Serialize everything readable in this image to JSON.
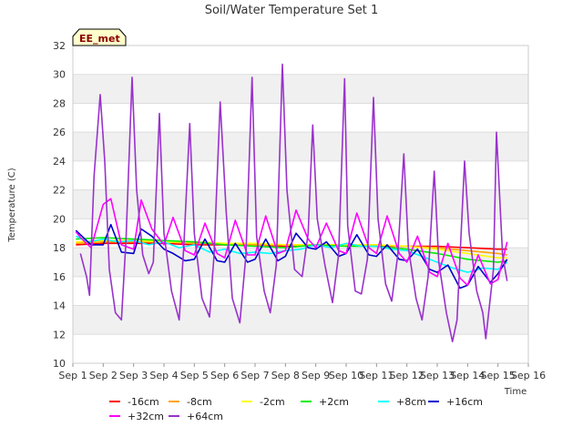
{
  "chart_data": {
    "type": "line",
    "title": "Soil/Water Temperature Set 1",
    "xlabel": "Time",
    "ylabel": "Temperature (C)",
    "badge": "EE_met",
    "xlim": [
      1,
      16
    ],
    "ylim": [
      10,
      32
    ],
    "x_ticks": [
      1,
      2,
      3,
      4,
      5,
      6,
      7,
      8,
      9,
      10,
      11,
      12,
      13,
      14,
      15,
      16
    ],
    "x_tick_labels": [
      "Sep 1",
      "Sep 2",
      "Sep 3",
      "Sep 4",
      "Sep 5",
      "Sep 6",
      "Sep 7",
      "Sep 8",
      "Sep 9",
      "Sep 10",
      "Sep 11",
      "Sep 12",
      "Sep 13",
      "Sep 14",
      "Sep 15",
      "Sep 16"
    ],
    "y_ticks": [
      10,
      12,
      14,
      16,
      18,
      20,
      22,
      24,
      26,
      28,
      30,
      32
    ],
    "grid": "alternating horizontal bands",
    "legend_position": "bottom",
    "series": [
      {
        "name": "-16cm",
        "color": "#ff0000",
        "x": [
          1.1,
          2,
          3,
          4,
          5,
          6,
          7,
          8,
          9,
          10,
          11,
          12,
          13,
          14,
          15,
          15.3
        ],
        "y": [
          18.2,
          18.3,
          18.3,
          18.3,
          18.2,
          18.2,
          18.2,
          18.1,
          18.2,
          18.2,
          18.1,
          18.1,
          18.1,
          18.0,
          17.9,
          17.9
        ]
      },
      {
        "name": "-8cm",
        "color": "#ffa500",
        "x": [
          1.1,
          2,
          3,
          4,
          5,
          6,
          7,
          8,
          9,
          10,
          11,
          12,
          13,
          14,
          15,
          15.3
        ],
        "y": [
          18.3,
          18.4,
          18.4,
          18.4,
          18.3,
          18.3,
          18.2,
          18.2,
          18.2,
          18.2,
          18.2,
          18.1,
          18.0,
          17.8,
          17.6,
          17.5
        ]
      },
      {
        "name": "-2cm",
        "color": "#ffff00",
        "x": [
          1.1,
          2,
          3,
          4,
          5,
          6,
          7,
          8,
          9,
          10,
          11,
          12,
          13,
          14,
          15,
          15.3
        ],
        "y": [
          18.4,
          18.5,
          18.5,
          18.4,
          18.4,
          18.3,
          18.3,
          18.2,
          18.2,
          18.2,
          18.2,
          18.1,
          17.9,
          17.6,
          17.3,
          17.3
        ]
      },
      {
        "name": "+2cm",
        "color": "#00ee00",
        "x": [
          1.1,
          2,
          3,
          4,
          5,
          6,
          7,
          8,
          9,
          10,
          11,
          12,
          13,
          14,
          15,
          15.3
        ],
        "y": [
          18.6,
          18.7,
          18.6,
          18.5,
          18.4,
          18.2,
          18.1,
          18.0,
          18.2,
          18.1,
          18.1,
          17.9,
          17.6,
          17.2,
          17.0,
          17.1
        ]
      },
      {
        "name": "+8cm",
        "color": "#00ffff",
        "x": [
          1.1,
          1.5,
          2,
          2.5,
          3,
          3.5,
          4,
          4.5,
          5,
          5.5,
          6,
          6.5,
          7,
          7.5,
          8,
          8.5,
          9,
          9.5,
          10,
          10.5,
          11,
          11.5,
          12,
          12.5,
          13,
          13.5,
          14,
          14.5,
          15,
          15.3
        ],
        "y": [
          18.8,
          18.4,
          18.6,
          18.4,
          18.5,
          18.2,
          18.4,
          18.0,
          18.2,
          17.7,
          17.9,
          17.6,
          17.7,
          17.6,
          17.8,
          17.9,
          18.2,
          18.0,
          18.3,
          18.1,
          18.1,
          17.9,
          17.8,
          17.4,
          17.0,
          16.6,
          16.3,
          16.6,
          16.5,
          17.0
        ]
      },
      {
        "name": "+16cm",
        "color": "#0000cd",
        "x": [
          1.1,
          1.3,
          1.6,
          2.0,
          2.25,
          2.6,
          3.0,
          3.25,
          3.6,
          4.0,
          4.3,
          4.7,
          5.0,
          5.35,
          5.75,
          6.0,
          6.35,
          6.75,
          7.0,
          7.35,
          7.75,
          8.0,
          8.35,
          8.75,
          9.0,
          9.35,
          9.75,
          10.0,
          10.35,
          10.75,
          11.0,
          11.35,
          11.75,
          12.0,
          12.35,
          12.75,
          13.0,
          13.35,
          13.75,
          14.0,
          14.35,
          14.75,
          15.0,
          15.3
        ],
        "y": [
          19.2,
          18.8,
          18.2,
          18.2,
          19.6,
          17.7,
          17.6,
          19.3,
          18.8,
          17.9,
          17.6,
          17.1,
          17.2,
          18.6,
          17.1,
          17.0,
          18.3,
          17.0,
          17.2,
          18.6,
          17.1,
          17.4,
          19.0,
          18.0,
          17.9,
          18.4,
          17.4,
          17.6,
          18.9,
          17.5,
          17.4,
          18.2,
          17.2,
          17.1,
          17.9,
          16.5,
          16.3,
          16.8,
          15.2,
          15.4,
          16.7,
          15.6,
          16.2,
          17.2
        ]
      },
      {
        "name": "+32cm",
        "color": "#ff00ff",
        "x": [
          1.1,
          1.3,
          1.6,
          2.0,
          2.25,
          2.6,
          3.0,
          3.25,
          3.6,
          4.0,
          4.3,
          4.7,
          5.0,
          5.35,
          5.75,
          6.0,
          6.35,
          6.75,
          7.0,
          7.35,
          7.75,
          8.0,
          8.35,
          8.75,
          9.0,
          9.35,
          9.75,
          10.0,
          10.35,
          10.75,
          11.0,
          11.35,
          11.75,
          12.0,
          12.35,
          12.75,
          13.0,
          13.35,
          13.75,
          14.0,
          14.35,
          14.75,
          15.0,
          15.3
        ],
        "y": [
          19.1,
          18.6,
          18.0,
          21.0,
          21.4,
          18.2,
          17.9,
          21.3,
          19.3,
          18.2,
          20.1,
          17.8,
          17.5,
          19.7,
          17.6,
          17.3,
          19.9,
          17.5,
          17.5,
          20.2,
          17.6,
          17.8,
          20.6,
          18.6,
          18.0,
          19.7,
          17.8,
          17.6,
          20.4,
          18.0,
          17.6,
          20.2,
          17.6,
          17.0,
          18.8,
          16.3,
          16.0,
          18.3,
          15.9,
          15.4,
          17.5,
          15.5,
          15.8,
          18.4
        ]
      },
      {
        "name": "+64cm",
        "color": "#9932cc",
        "x": [
          1.25,
          1.45,
          1.55,
          1.7,
          1.9,
          2.05,
          2.2,
          2.4,
          2.6,
          2.75,
          2.95,
          3.1,
          3.3,
          3.5,
          3.65,
          3.85,
          4.0,
          4.25,
          4.5,
          4.65,
          4.85,
          5.0,
          5.25,
          5.5,
          5.65,
          5.85,
          6.05,
          6.25,
          6.5,
          6.7,
          6.9,
          7.05,
          7.3,
          7.5,
          7.7,
          7.9,
          8.05,
          8.3,
          8.55,
          8.75,
          8.9,
          9.05,
          9.3,
          9.55,
          9.75,
          9.95,
          10.05,
          10.3,
          10.5,
          10.7,
          10.9,
          11.05,
          11.3,
          11.5,
          11.7,
          11.9,
          12.05,
          12.3,
          12.5,
          12.7,
          12.9,
          13.05,
          13.3,
          13.5,
          13.65,
          13.9,
          14.05,
          14.3,
          14.5,
          14.6,
          14.85,
          14.95,
          15.15,
          15.3
        ],
        "y": [
          17.6,
          16.0,
          14.7,
          23.0,
          28.6,
          24.0,
          16.5,
          13.5,
          13.0,
          18.5,
          29.8,
          22.0,
          17.5,
          16.2,
          17.0,
          27.3,
          19.0,
          15.0,
          13.0,
          18.0,
          26.6,
          19.0,
          14.5,
          13.2,
          17.5,
          28.1,
          20.5,
          14.5,
          12.8,
          17.5,
          29.8,
          18.8,
          15.0,
          13.5,
          16.8,
          30.7,
          22.0,
          16.5,
          16.0,
          19.0,
          26.5,
          20.0,
          16.8,
          14.2,
          17.5,
          29.7,
          19.5,
          15.0,
          14.8,
          17.2,
          28.4,
          20.0,
          15.5,
          14.3,
          17.5,
          24.5,
          18.0,
          14.5,
          13.0,
          16.0,
          23.3,
          17.0,
          13.5,
          11.5,
          13.0,
          24.0,
          19.0,
          15.0,
          13.5,
          11.7,
          16.5,
          26.0,
          17.5,
          15.7
        ]
      }
    ]
  }
}
